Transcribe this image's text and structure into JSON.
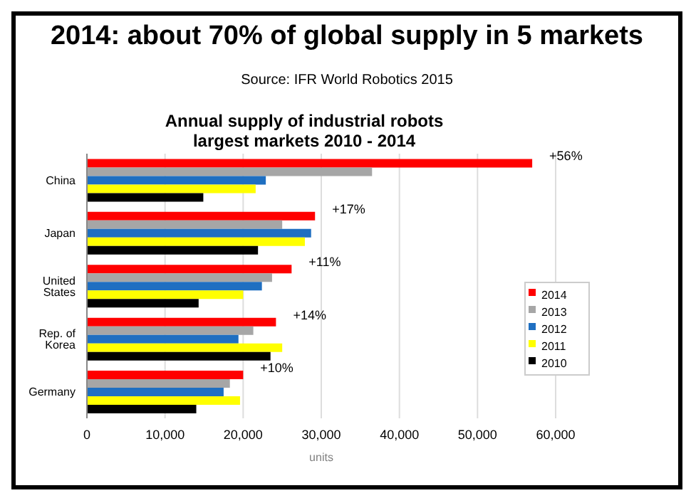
{
  "chart_data": {
    "type": "bar",
    "orientation": "horizontal",
    "title": "2014: about 70% of global supply in 5 markets",
    "subtitle": "Annual supply of industrial robots\nlargest markets 2010 - 2014",
    "xlabel": "units",
    "categories": [
      "China",
      "Japan",
      "United States",
      "Rep. of Korea",
      "Germany"
    ],
    "series": [
      {
        "name": "2014",
        "color": "#ff0000",
        "values": [
          57000,
          29200,
          26200,
          24200,
          20000
        ]
      },
      {
        "name": "2013",
        "color": "#a6a6a6",
        "values": [
          36500,
          25000,
          23700,
          21300,
          18300
        ]
      },
      {
        "name": "2012",
        "color": "#1f6fc1",
        "values": [
          22900,
          28700,
          22400,
          19400,
          17500
        ]
      },
      {
        "name": "2011",
        "color": "#ffff00",
        "values": [
          21600,
          27900,
          20000,
          25000,
          19600
        ]
      },
      {
        "name": "2010",
        "color": "#000000",
        "values": [
          14900,
          21900,
          14300,
          23500,
          14000
        ]
      }
    ],
    "xlim": [
      0,
      60000
    ],
    "xticks": [
      {
        "value": 0,
        "label": "0"
      },
      {
        "value": 10000,
        "label": "10,000"
      },
      {
        "value": 20000,
        "label": "20,000"
      },
      {
        "value": 30000,
        "label": "30,000"
      },
      {
        "value": 40000,
        "label": "40,000"
      },
      {
        "value": 50000,
        "label": "50,000"
      },
      {
        "value": 60000,
        "label": "60,000"
      }
    ],
    "grid": "x",
    "legend": "right",
    "annotations": [
      "Source: IFR World Robotics 2015",
      "+56%",
      "+17%",
      "+11%",
      "+14%",
      "+10%"
    ]
  }
}
